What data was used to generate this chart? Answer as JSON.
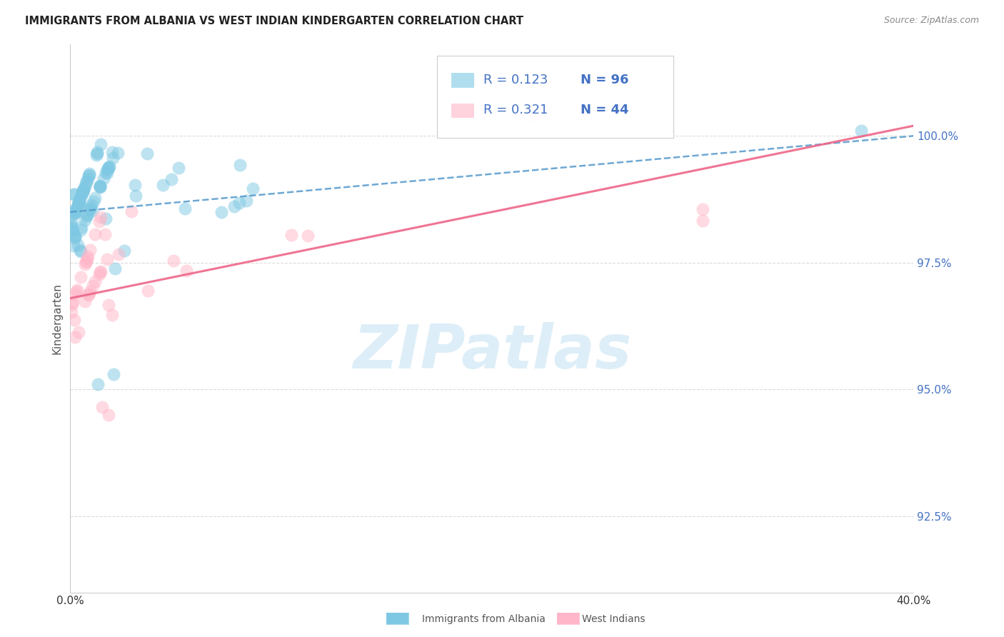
{
  "title": "IMMIGRANTS FROM ALBANIA VS WEST INDIAN KINDERGARTEN CORRELATION CHART",
  "source": "Source: ZipAtlas.com",
  "ylabel_label": "Kindergarten",
  "x_min": 0.0,
  "x_max": 40.0,
  "y_min": 91.0,
  "y_max": 101.8,
  "yticks": [
    92.5,
    95.0,
    97.5,
    100.0
  ],
  "ytick_labels": [
    "92.5%",
    "95.0%",
    "97.5%",
    "100.0%"
  ],
  "r1": 0.123,
  "n1": 96,
  "r2": 0.321,
  "n2": 44,
  "color_blue": "#7ec8e3",
  "color_pink": "#ffb6c8",
  "color_blue_line": "#5599cc",
  "color_pink_line": "#ee6688",
  "watermark_color": "#ddeef8",
  "legend_text_color": "#4472c4",
  "title_color": "#222222",
  "source_color": "#888888",
  "ytick_color": "#4472c4",
  "xtick_color": "#333333",
  "ylabel_color": "#555555",
  "grid_color": "#cccccc"
}
